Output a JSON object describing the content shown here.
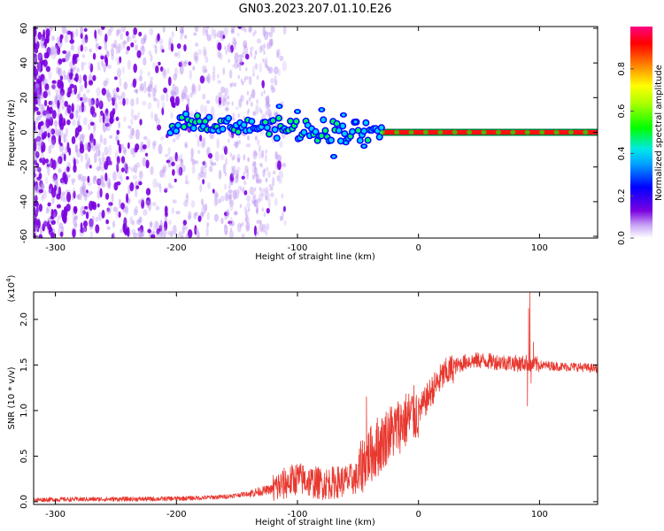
{
  "title": "GN03.2023.207.01.10.E26",
  "chart_data": [
    {
      "type": "heatmap",
      "xlabel": "Height of straight line (km)",
      "ylabel": "Frequency (Hz)",
      "xlim": [
        -318,
        148
      ],
      "ylim": [
        -61,
        61
      ],
      "xticks": [
        -300,
        -200,
        -100,
        0,
        100
      ],
      "xtick_labels": [
        "-300",
        "-200",
        "-100",
        "0",
        "100"
      ],
      "yticks": [
        -60,
        -40,
        -20,
        0,
        20,
        40,
        60
      ],
      "ytick_labels": [
        "-60",
        "-40",
        "-20",
        "0",
        "20",
        "40",
        "60"
      ],
      "colorbar": {
        "label": "Normalized spectral amplitude",
        "range": [
          0,
          1
        ],
        "ticks": [
          0.0,
          0.2,
          0.4,
          0.6,
          0.8
        ],
        "tick_labels": [
          "0.0",
          "0.2",
          "0.4",
          "0.6",
          "0.8"
        ],
        "colormap": [
          "#ffffff",
          "#7a00e0",
          "#0000ff",
          "#00e0ff",
          "#00ff00",
          "#ffff00",
          "#ff0000",
          "#ff0080"
        ]
      },
      "features": {
        "noise_region_x": [
          -318,
          -130
        ],
        "signal_track": [
          [
            -200,
            7
          ],
          [
            -150,
            4
          ],
          [
            -100,
            2
          ],
          [
            -60,
            1
          ],
          [
            -40,
            -1
          ],
          [
            0,
            0
          ],
          [
            148,
            0
          ]
        ]
      }
    },
    {
      "type": "line",
      "xlabel": "Height of straight line (km)",
      "ylabel": "SNR (10 * v/v)",
      "multiplier": "(x10",
      "multiplier_exp": "4",
      "xlim": [
        -318,
        148
      ],
      "ylim": [
        -300,
        23000
      ],
      "xticks": [
        -300,
        -200,
        -100,
        0,
        100
      ],
      "xtick_labels": [
        "-300",
        "-200",
        "-100",
        "0",
        "100"
      ],
      "yticks": [
        0,
        5000,
        10000,
        15000,
        20000
      ],
      "ytick_labels": [
        "0.0",
        "0.5",
        "1.0",
        "1.5",
        "2.0"
      ],
      "series": [
        {
          "color": "#e8382f",
          "x": [
            -318,
            -300,
            -260,
            -220,
            -200,
            -180,
            -160,
            -140,
            -120,
            -110,
            -100,
            -90,
            -80,
            -70,
            -60,
            -50,
            -45,
            -40,
            -35,
            -30,
            -25,
            -20,
            -15,
            -10,
            -5,
            0,
            5,
            10,
            20,
            30,
            40,
            50,
            60,
            70,
            80,
            85,
            90,
            92,
            95,
            100,
            110,
            120,
            130,
            148
          ],
          "y": [
            200,
            250,
            280,
            300,
            350,
            420,
            550,
            900,
            1400,
            2000,
            2600,
            2200,
            2000,
            2100,
            2300,
            2600,
            4500,
            5200,
            5600,
            6500,
            7500,
            7800,
            8500,
            9000,
            9500,
            9800,
            10800,
            12000,
            13800,
            14800,
            15400,
            15500,
            15400,
            15300,
            15200,
            15100,
            15300,
            15000,
            15100,
            15000,
            14900,
            14800,
            14800,
            14600
          ],
          "spikes": [
            [
              -43,
              11500
            ],
            [
              -34,
              9200
            ],
            [
              -23,
              10000
            ],
            [
              -16,
              8200
            ],
            [
              -10,
              9900
            ],
            [
              90,
              10500
            ],
            [
              91,
              21200
            ],
            [
              92,
              23000
            ],
            [
              93,
              13000
            ],
            [
              95,
              17500
            ]
          ]
        }
      ]
    }
  ]
}
